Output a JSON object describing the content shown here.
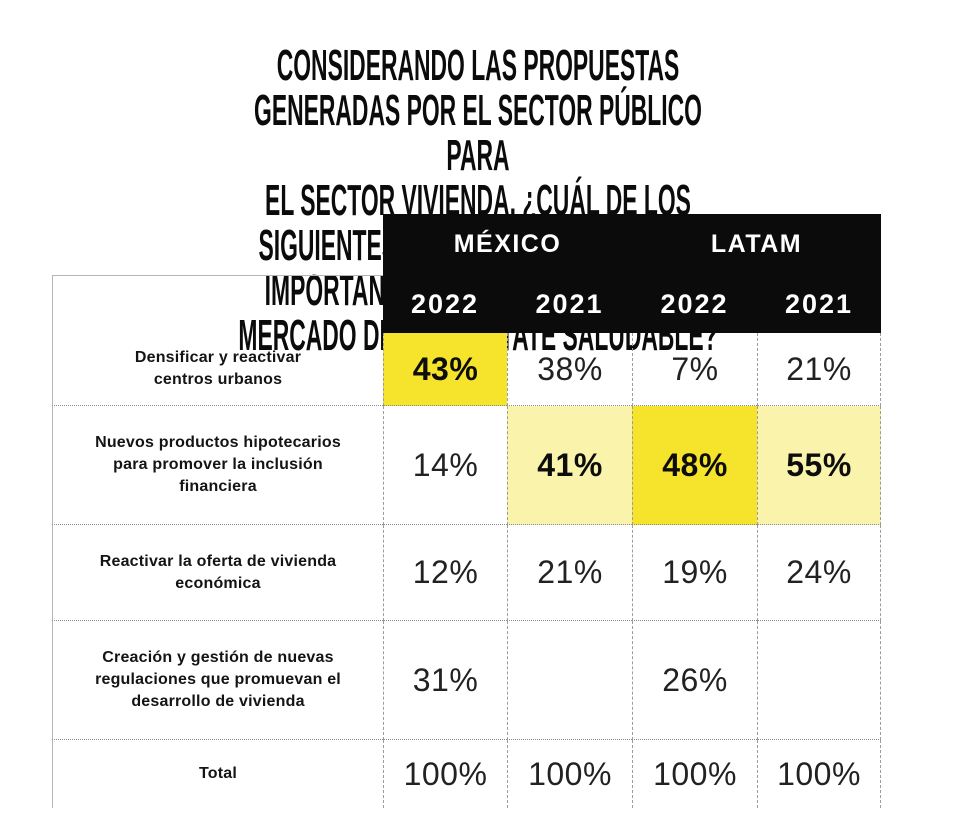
{
  "title": "CONSIDERANDO LAS PROPUESTAS GENERADAS POR EL SECTOR PÚBLICO PARA\nEL SECTOR VIVIENDA, ¿CUÁL DE LOS SIGUIENTES OBJETIVOS TIENE MAYOR\nIMPORTANCIA PARA ESTABLECER UN MERCADO DE REAL ESTATE SALUDABLE?",
  "table": {
    "column_groups": {
      "mexico": "MÉXICO",
      "latam": "LATAM"
    },
    "year_headers": [
      "2022",
      "2021",
      "2022",
      "2021"
    ],
    "rows": [
      {
        "label": "Densificar y reactivar\ncentros urbanos",
        "values": [
          "43%",
          "38%",
          "7%",
          "21%"
        ],
        "highlights": [
          "strong",
          null,
          null,
          null
        ]
      },
      {
        "label": "Nuevos productos hipotecarios\npara promover la inclusión\nfinanciera",
        "values": [
          "14%",
          "41%",
          "48%",
          "55%"
        ],
        "highlights": [
          null,
          "soft",
          "strong",
          "soft"
        ]
      },
      {
        "label": "Reactivar la oferta de vivienda\neconómica",
        "values": [
          "12%",
          "21%",
          "19%",
          "24%"
        ],
        "highlights": [
          null,
          null,
          null,
          null
        ]
      },
      {
        "label": "Creación y gestión de nuevas\nregulaciones que promuevan el\ndesarrollo de vivienda",
        "values": [
          "31%",
          "",
          "26%",
          ""
        ],
        "highlights": [
          null,
          null,
          null,
          null
        ]
      },
      {
        "label": "Total",
        "values": [
          "100%",
          "100%",
          "100%",
          "100%"
        ],
        "highlights": [
          null,
          null,
          null,
          null
        ]
      }
    ]
  },
  "colors": {
    "header_bg": "#0b0b0b",
    "header_text": "#ffffff",
    "strong_highlight": "#f6e42c",
    "soft_highlight": "#faf3ac",
    "grid_line": "#9c9c9c"
  },
  "chart_data": {
    "type": "table",
    "title": "Considerando las propuestas generadas por el sector público para el sector vivienda, ¿cuál de los siguientes objetivos tiene mayor importancia para establecer un mercado de real estate saludable?",
    "column_groups": [
      "MÉXICO",
      "LATAM"
    ],
    "columns": [
      "MÉXICO 2022",
      "MÉXICO 2021",
      "LATAM 2022",
      "LATAM 2021"
    ],
    "categories": [
      "Densificar y reactivar centros urbanos",
      "Nuevos productos hipotecarios para promover la inclusión financiera",
      "Reactivar la oferta de vivienda económica",
      "Creación y gestión de nuevas regulaciones que promuevan el desarrollo de vivienda",
      "Total"
    ],
    "series": [
      {
        "name": "MÉXICO 2022",
        "values": [
          43,
          14,
          12,
          31,
          100
        ]
      },
      {
        "name": "MÉXICO 2021",
        "values": [
          38,
          41,
          21,
          null,
          100
        ]
      },
      {
        "name": "LATAM 2022",
        "values": [
          7,
          48,
          19,
          26,
          100
        ]
      },
      {
        "name": "LATAM 2021",
        "values": [
          21,
          55,
          24,
          null,
          100
        ]
      }
    ],
    "unit": "%",
    "highlighted_cells": [
      {
        "row": "Densificar y reactivar centros urbanos",
        "column": "MÉXICO 2022",
        "value": 43,
        "style": "strong-yellow"
      },
      {
        "row": "Nuevos productos hipotecarios para promover la inclusión financiera",
        "column": "MÉXICO 2021",
        "value": 41,
        "style": "soft-yellow"
      },
      {
        "row": "Nuevos productos hipotecarios para promover la inclusión financiera",
        "column": "LATAM 2022",
        "value": 48,
        "style": "strong-yellow"
      },
      {
        "row": "Nuevos productos hipotecarios para promover la inclusión financiera",
        "column": "LATAM 2021",
        "value": 55,
        "style": "soft-yellow"
      }
    ]
  }
}
